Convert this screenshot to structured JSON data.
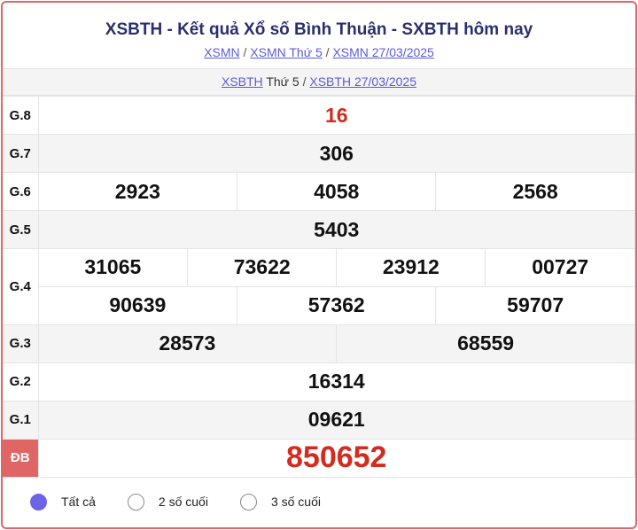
{
  "header": {
    "title": "XSBTH - Kết quả Xổ số Bình Thuận - SXBTH hôm nay",
    "breadcrumb": [
      "XSMN",
      "XSMN Thứ 5",
      "XSMN 27/03/2025"
    ],
    "sub_link1": "XSBTH",
    "sub_text": "Thứ 5",
    "sub_link2": "XSBTH 27/03/2025"
  },
  "prizes": {
    "g8": {
      "label": "G.8",
      "values": [
        "16"
      ]
    },
    "g7": {
      "label": "G.7",
      "values": [
        "306"
      ]
    },
    "g6": {
      "label": "G.6",
      "values": [
        "2923",
        "4058",
        "2568"
      ]
    },
    "g5": {
      "label": "G.5",
      "values": [
        "5403"
      ]
    },
    "g4": {
      "label": "G.4",
      "values": [
        "31065",
        "73622",
        "23912",
        "00727",
        "90639",
        "57362",
        "59707"
      ]
    },
    "g3": {
      "label": "G.3",
      "values": [
        "28573",
        "68559"
      ]
    },
    "g2": {
      "label": "G.2",
      "values": [
        "16314"
      ]
    },
    "g1": {
      "label": "G.1",
      "values": [
        "09621"
      ]
    },
    "db": {
      "label": "ĐB",
      "values": [
        "850652"
      ]
    }
  },
  "filter": {
    "options": [
      "Tất cả",
      "2 số cuối",
      "3 số cuối"
    ],
    "selected": "Tất cả"
  },
  "colors": {
    "accent": "#e06666",
    "prize_red": "#d22b1f",
    "title": "#2a2f6e",
    "radio": "#6c63e8"
  }
}
